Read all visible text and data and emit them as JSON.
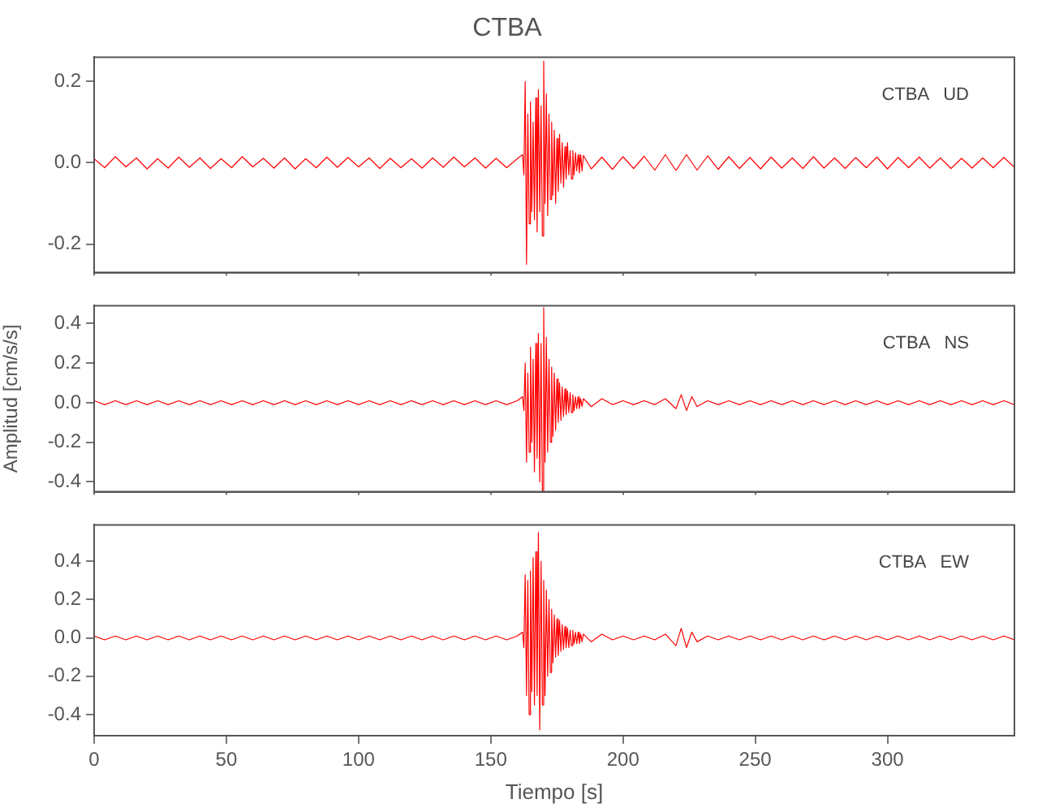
{
  "chart_data": [
    {
      "type": "line",
      "title": "CTBA",
      "annotations": [
        "CTBA   UD"
      ],
      "x": [
        0,
        4,
        8,
        12,
        16,
        20,
        24,
        28,
        32,
        36,
        40,
        44,
        48,
        52,
        56,
        60,
        64,
        68,
        72,
        76,
        80,
        84,
        88,
        92,
        96,
        100,
        104,
        108,
        112,
        116,
        120,
        124,
        128,
        132,
        136,
        140,
        144,
        148,
        152,
        156,
        160,
        162,
        162.5,
        163,
        163.5,
        164,
        164.5,
        165,
        165.5,
        166,
        166.5,
        167,
        167.5,
        168,
        168.5,
        169,
        169.5,
        170,
        170.5,
        171,
        171.5,
        172,
        172.5,
        173,
        173.5,
        174,
        174.5,
        175,
        175.5,
        176,
        176.5,
        177,
        177.5,
        178,
        178.5,
        179,
        179.5,
        180,
        180.5,
        181,
        181.5,
        182,
        182.5,
        183,
        183.5,
        184,
        184.5,
        185,
        188,
        192,
        196,
        200,
        204,
        208,
        212,
        216,
        220,
        224,
        228,
        232,
        236,
        240,
        244,
        248,
        252,
        256,
        260,
        264,
        268,
        272,
        276,
        280,
        284,
        288,
        292,
        296,
        300,
        304,
        308,
        312,
        316,
        320,
        324,
        328,
        332,
        336,
        340,
        344,
        348
      ],
      "series": [
        {
          "color": "#ff0000",
          "values": [
            0.01,
            -0.012,
            0.015,
            -0.01,
            0.012,
            -0.015,
            0.01,
            -0.013,
            0.014,
            -0.011,
            0.012,
            -0.014,
            0.01,
            -0.012,
            0.015,
            -0.01,
            0.011,
            -0.013,
            0.012,
            -0.015,
            0.01,
            -0.012,
            0.014,
            -0.011,
            0.013,
            -0.01,
            0.012,
            -0.014,
            0.011,
            -0.012,
            0.01,
            -0.013,
            0.012,
            -0.011,
            0.014,
            -0.01,
            0.012,
            -0.013,
            0.011,
            -0.012,
            0.01,
            0.02,
            -0.03,
            0.2,
            -0.25,
            0.12,
            -0.15,
            0.15,
            -0.12,
            0.1,
            -0.14,
            0.16,
            -0.17,
            0.18,
            -0.12,
            0.14,
            -0.18,
            0.25,
            -0.1,
            0.17,
            -0.13,
            0.12,
            -0.09,
            0.1,
            -0.08,
            0.08,
            -0.1,
            0.06,
            -0.07,
            0.07,
            -0.05,
            0.05,
            -0.06,
            0.04,
            -0.04,
            0.05,
            -0.03,
            0.03,
            -0.04,
            0.03,
            -0.03,
            0.025,
            -0.02,
            0.02,
            -0.025,
            0.02,
            -0.02,
            0.018,
            -0.015,
            0.014,
            -0.016,
            0.015,
            -0.014,
            0.016,
            -0.018,
            0.02,
            -0.019,
            0.02,
            -0.018,
            0.017,
            -0.016,
            0.015,
            -0.014,
            0.013,
            -0.015,
            0.014,
            -0.013,
            0.012,
            -0.014,
            0.015,
            -0.013,
            0.012,
            -0.014,
            0.013,
            -0.012,
            0.014,
            -0.015,
            0.013,
            -0.012,
            0.014,
            -0.013,
            0.012,
            -0.014,
            0.011,
            -0.013,
            0.012,
            -0.012,
            0.013,
            -0.011
          ]
        }
      ],
      "xlim": [
        0,
        348
      ],
      "xticks": [
        0,
        50,
        100,
        150,
        200,
        250,
        300
      ],
      "ylim": [
        -0.27,
        0.26
      ],
      "yticks": [
        {
          "value": -0.2,
          "label": "-0.2"
        },
        {
          "value": 0,
          "label": "0.0"
        },
        {
          "value": 0.2,
          "label": "0.2"
        }
      ],
      "tick_labels": "y"
    },
    {
      "type": "line",
      "ylabel": "Amplitud [cm/s/s]",
      "annotations": [
        "CTBA   NS"
      ],
      "x": [
        0,
        4,
        8,
        12,
        16,
        20,
        24,
        28,
        32,
        36,
        40,
        44,
        48,
        52,
        56,
        60,
        64,
        68,
        72,
        76,
        80,
        84,
        88,
        92,
        96,
        100,
        104,
        108,
        112,
        116,
        120,
        124,
        128,
        132,
        136,
        140,
        144,
        148,
        152,
        156,
        160,
        162,
        162.5,
        163,
        163.5,
        164,
        164.5,
        165,
        165.5,
        166,
        166.5,
        167,
        167.5,
        168,
        168.5,
        169,
        169.5,
        170,
        170.5,
        171,
        171.5,
        172,
        172.5,
        173,
        173.5,
        174,
        174.5,
        175,
        175.5,
        176,
        176.5,
        177,
        177.5,
        178,
        178.5,
        179,
        179.5,
        180,
        180.5,
        181,
        181.5,
        182,
        182.5,
        183,
        183.5,
        184,
        184.5,
        185,
        188,
        192,
        196,
        200,
        204,
        208,
        212,
        216,
        220,
        222,
        224,
        226,
        228,
        232,
        236,
        240,
        244,
        248,
        252,
        256,
        260,
        264,
        268,
        272,
        276,
        280,
        284,
        288,
        292,
        296,
        300,
        304,
        308,
        312,
        316,
        320,
        324,
        328,
        332,
        336,
        340,
        344,
        348
      ],
      "series": [
        {
          "color": "#ff0000",
          "values": [
            0.01,
            -0.01,
            0.01,
            -0.01,
            0.01,
            -0.01,
            0.01,
            -0.01,
            0.01,
            -0.01,
            0.01,
            -0.01,
            0.01,
            -0.01,
            0.01,
            -0.01,
            0.01,
            -0.01,
            0.01,
            -0.01,
            0.01,
            -0.01,
            0.01,
            -0.01,
            0.01,
            -0.01,
            0.01,
            -0.01,
            0.01,
            -0.01,
            0.01,
            -0.01,
            0.01,
            -0.01,
            0.01,
            -0.01,
            0.01,
            -0.01,
            0.01,
            -0.01,
            0.01,
            0.03,
            -0.04,
            0.2,
            -0.3,
            0.15,
            -0.25,
            0.28,
            -0.2,
            0.22,
            -0.35,
            0.3,
            -0.28,
            0.35,
            -0.4,
            0.3,
            -0.45,
            0.48,
            -0.3,
            0.33,
            -0.25,
            0.22,
            -0.2,
            0.18,
            -0.17,
            0.15,
            -0.14,
            0.12,
            -0.1,
            0.1,
            -0.09,
            0.08,
            -0.07,
            0.07,
            -0.06,
            0.06,
            -0.05,
            0.05,
            -0.05,
            0.04,
            -0.04,
            0.03,
            -0.03,
            0.03,
            -0.03,
            0.02,
            -0.02,
            0.02,
            -0.02,
            0.02,
            -0.01,
            0.01,
            -0.01,
            0.01,
            -0.01,
            0.02,
            -0.03,
            0.04,
            -0.04,
            0.03,
            -0.02,
            0.01,
            -0.01,
            0.01,
            -0.01,
            0.01,
            -0.01,
            0.01,
            -0.01,
            0.01,
            -0.01,
            0.01,
            -0.01,
            0.01,
            -0.01,
            0.01,
            -0.01,
            0.01,
            -0.01,
            0.01,
            -0.01,
            0.01,
            -0.01,
            0.01,
            -0.01,
            0.01,
            -0.01,
            0.01,
            -0.01,
            0.01,
            -0.01
          ]
        }
      ],
      "xlim": [
        0,
        348
      ],
      "xticks": [
        0,
        50,
        100,
        150,
        200,
        250,
        300
      ],
      "ylim": [
        -0.45,
        0.49
      ],
      "yticks": [
        {
          "value": -0.4,
          "label": "-0.4"
        },
        {
          "value": -0.2,
          "label": "-0.2"
        },
        {
          "value": 0,
          "label": "0.0"
        },
        {
          "value": 0.2,
          "label": "0.2"
        },
        {
          "value": 0.4,
          "label": "0.4"
        }
      ],
      "tick_labels": "y"
    },
    {
      "type": "line",
      "xlabel": "Tiempo [s]",
      "annotations": [
        "CTBA   EW"
      ],
      "x": [
        0,
        4,
        8,
        12,
        16,
        20,
        24,
        28,
        32,
        36,
        40,
        44,
        48,
        52,
        56,
        60,
        64,
        68,
        72,
        76,
        80,
        84,
        88,
        92,
        96,
        100,
        104,
        108,
        112,
        116,
        120,
        124,
        128,
        132,
        136,
        140,
        144,
        148,
        152,
        156,
        160,
        162,
        162.5,
        163,
        163.5,
        164,
        164.5,
        165,
        165.5,
        166,
        166.5,
        167,
        167.5,
        168,
        168.5,
        169,
        169.5,
        170,
        170.5,
        171,
        171.5,
        172,
        172.5,
        173,
        173.5,
        174,
        174.5,
        175,
        175.5,
        176,
        176.5,
        177,
        177.5,
        178,
        178.5,
        179,
        179.5,
        180,
        180.5,
        181,
        181.5,
        182,
        182.5,
        183,
        183.5,
        184,
        184.5,
        185,
        188,
        192,
        196,
        200,
        204,
        208,
        212,
        216,
        220,
        222,
        224,
        226,
        228,
        232,
        236,
        240,
        244,
        248,
        252,
        256,
        260,
        264,
        268,
        272,
        276,
        280,
        284,
        288,
        292,
        296,
        300,
        304,
        308,
        312,
        316,
        320,
        324,
        328,
        332,
        336,
        340,
        344,
        348
      ],
      "series": [
        {
          "color": "#ff0000",
          "values": [
            0.01,
            -0.01,
            0.01,
            -0.01,
            0.01,
            -0.01,
            0.01,
            -0.01,
            0.01,
            -0.01,
            0.01,
            -0.01,
            0.01,
            -0.01,
            0.01,
            -0.01,
            0.01,
            -0.01,
            0.01,
            -0.01,
            0.01,
            -0.01,
            0.01,
            -0.01,
            0.01,
            -0.01,
            0.01,
            -0.01,
            0.01,
            -0.01,
            0.01,
            -0.01,
            0.01,
            -0.01,
            0.01,
            -0.01,
            0.01,
            -0.01,
            0.01,
            -0.01,
            0.01,
            0.03,
            -0.05,
            0.33,
            -0.3,
            0.3,
            -0.4,
            0.35,
            -0.28,
            0.42,
            -0.35,
            0.45,
            -0.3,
            0.55,
            -0.48,
            0.4,
            -0.35,
            0.3,
            -0.3,
            0.25,
            -0.2,
            0.2,
            -0.18,
            0.15,
            -0.13,
            0.12,
            -0.1,
            0.1,
            -0.09,
            0.09,
            -0.07,
            0.07,
            -0.06,
            0.06,
            -0.05,
            0.05,
            -0.05,
            0.04,
            -0.04,
            0.04,
            -0.03,
            0.03,
            -0.03,
            0.03,
            -0.03,
            0.02,
            -0.02,
            0.02,
            -0.02,
            0.02,
            -0.01,
            0.01,
            -0.01,
            0.01,
            -0.01,
            0.02,
            -0.04,
            0.05,
            -0.05,
            0.03,
            -0.02,
            0.01,
            -0.01,
            0.01,
            -0.01,
            0.01,
            -0.01,
            0.01,
            -0.01,
            0.01,
            -0.01,
            0.01,
            -0.01,
            0.01,
            -0.01,
            0.01,
            -0.01,
            0.01,
            -0.01,
            0.01,
            -0.01,
            0.01,
            -0.01,
            0.01,
            -0.01,
            0.01,
            -0.01,
            0.01,
            -0.01,
            0.01,
            -0.01
          ]
        }
      ],
      "xlim": [
        0,
        348
      ],
      "xticks": [
        0,
        50,
        100,
        150,
        200,
        250,
        300
      ],
      "ylim": [
        -0.51,
        0.59
      ],
      "yticks": [
        {
          "value": -0.4,
          "label": "-0.4"
        },
        {
          "value": -0.2,
          "label": "-0.2"
        },
        {
          "value": 0,
          "label": "0.0"
        },
        {
          "value": 0.2,
          "label": "0.2"
        },
        {
          "value": 0.4,
          "label": "0.4"
        }
      ]
    }
  ]
}
